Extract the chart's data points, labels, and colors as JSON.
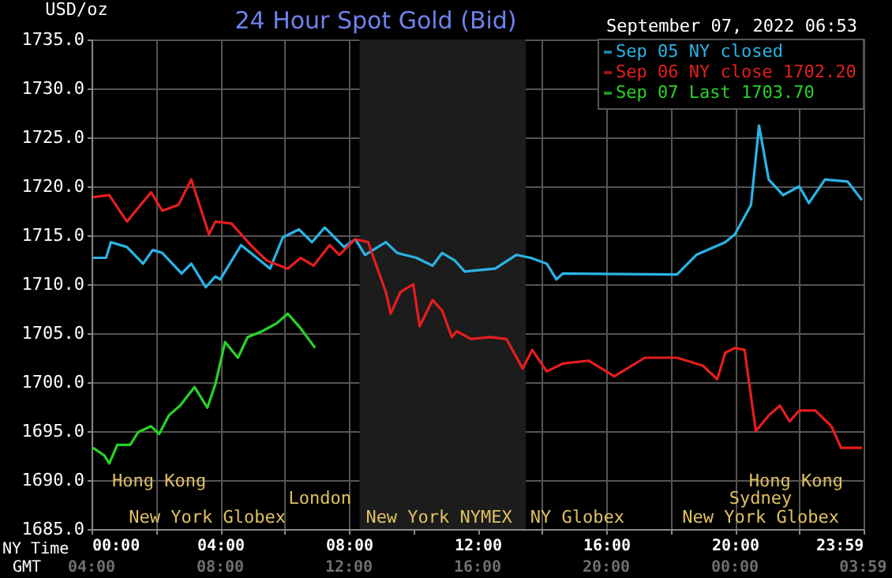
{
  "chart_data": {
    "type": "line",
    "title": "24 Hour Spot Gold (Bid)",
    "subtitle": "September 07, 2022 06:53",
    "xlabel": "NY Time",
    "ylabel": "USD/oz",
    "xlim": [
      0,
      24
    ],
    "xticks": [
      {
        "value": 0,
        "label": "00:00"
      },
      {
        "value": 2,
        "label": null
      },
      {
        "value": 4,
        "label": "04:00"
      },
      {
        "value": 6,
        "label": null
      },
      {
        "value": 8,
        "label": "08:00"
      },
      {
        "value": 10,
        "label": null
      },
      {
        "value": 12,
        "label": "12:00"
      },
      {
        "value": 14,
        "label": null
      },
      {
        "value": 16,
        "label": "16:00"
      },
      {
        "value": 18,
        "label": null
      },
      {
        "value": 20,
        "label": "20:00"
      },
      {
        "value": 22,
        "label": null
      },
      {
        "value": 23.983,
        "label": "23:59"
      }
    ],
    "ylim": [
      1685,
      1735
    ],
    "yticks": [
      {
        "value": 1685,
        "label": "1685.0"
      },
      {
        "value": 1690,
        "label": "1690.0"
      },
      {
        "value": 1695,
        "label": "1695.0"
      },
      {
        "value": 1700,
        "label": "1700.0"
      },
      {
        "value": 1705,
        "label": "1705.0"
      },
      {
        "value": 1710,
        "label": "1710.0"
      },
      {
        "value": 1715,
        "label": "1715.0"
      },
      {
        "value": 1720,
        "label": "1720.0"
      },
      {
        "value": 1725,
        "label": "1725.0"
      },
      {
        "value": 1730,
        "label": "1730.0"
      },
      {
        "value": 1735,
        "label": "1735.0"
      }
    ],
    "grid": true,
    "legend": "top right",
    "marker": "none",
    "line_style": "solid",
    "bands": [
      {
        "axis": "x",
        "from": 8.33,
        "to": 13.5,
        "color": "#1c1c1c"
      }
    ],
    "series": [
      {
        "name": "Sep 05 NY closed",
        "color": "#2ab4e6",
        "x": [
          0.05,
          0.45,
          0.6,
          1.1,
          1.6,
          1.9,
          2.2,
          2.8,
          3.1,
          3.55,
          3.85,
          4.0,
          4.65,
          5.25,
          5.55,
          5.95,
          6.45,
          6.85,
          7.25,
          7.85,
          8.2,
          8.5,
          9.15,
          9.5,
          10.1,
          10.6,
          10.9,
          11.3,
          11.6,
          12.55,
          13.2,
          13.65,
          14.15,
          14.45,
          14.65,
          18.2,
          18.8,
          19.7,
          20.0,
          20.5,
          20.75,
          21.05,
          21.5,
          22.0,
          22.3,
          22.8,
          23.5,
          23.95
        ],
        "values": [
          1712.7,
          1712.7,
          1714.3,
          1713.8,
          1712.1,
          1713.5,
          1713.2,
          1711.1,
          1712.1,
          1709.7,
          1710.8,
          1710.5,
          1714.0,
          1712.4,
          1711.6,
          1714.8,
          1715.6,
          1714.3,
          1715.8,
          1713.8,
          1714.6,
          1713.0,
          1714.3,
          1713.2,
          1712.7,
          1711.9,
          1713.2,
          1712.4,
          1711.3,
          1711.6,
          1713.0,
          1712.7,
          1712.1,
          1710.5,
          1711.1,
          1711.0,
          1713.0,
          1714.3,
          1715.1,
          1718.1,
          1726.2,
          1720.7,
          1719.1,
          1720.0,
          1718.3,
          1720.7,
          1720.5,
          1718.6
        ]
      },
      {
        "name": "Sep 06 NY close 1702.20",
        "color": "#e61e1e",
        "x": [
          0.05,
          0.55,
          1.1,
          1.85,
          2.2,
          2.7,
          3.1,
          3.65,
          3.85,
          4.35,
          4.95,
          5.45,
          6.1,
          6.5,
          6.9,
          7.4,
          7.7,
          8.2,
          8.6,
          8.8,
          9.15,
          9.3,
          9.6,
          10.0,
          10.2,
          10.6,
          10.9,
          11.2,
          11.35,
          11.8,
          12.4,
          12.9,
          13.4,
          13.7,
          14.15,
          14.65,
          15.45,
          16.25,
          17.2,
          18.2,
          19.0,
          19.45,
          19.7,
          20.0,
          20.3,
          20.65,
          21.05,
          21.4,
          21.7,
          22.0,
          22.5,
          23.0,
          23.3,
          23.95
        ],
        "values": [
          1718.9,
          1719.1,
          1716.4,
          1719.4,
          1717.5,
          1718.1,
          1720.7,
          1715.1,
          1716.4,
          1716.2,
          1714.0,
          1712.4,
          1711.6,
          1712.7,
          1711.9,
          1714.0,
          1713.0,
          1714.6,
          1714.3,
          1712.4,
          1709.2,
          1707.0,
          1709.2,
          1710.0,
          1705.7,
          1708.4,
          1707.3,
          1704.6,
          1705.2,
          1704.4,
          1704.6,
          1704.4,
          1701.4,
          1703.3,
          1701.1,
          1701.9,
          1702.2,
          1700.6,
          1702.5,
          1702.5,
          1701.7,
          1700.3,
          1703.0,
          1703.5,
          1703.3,
          1695.0,
          1696.6,
          1697.6,
          1696.0,
          1697.1,
          1697.1,
          1695.5,
          1693.3,
          1693.3
        ]
      },
      {
        "name": "Sep 07 Last 1703.70",
        "color": "#28d228",
        "x": [
          0.05,
          0.4,
          0.55,
          0.8,
          1.2,
          1.45,
          1.85,
          2.1,
          2.4,
          2.75,
          3.2,
          3.6,
          3.85,
          4.15,
          4.55,
          4.85,
          5.3,
          5.75,
          6.1,
          6.45,
          6.95
        ],
        "values": [
          1693.3,
          1692.5,
          1691.7,
          1693.6,
          1693.6,
          1694.9,
          1695.5,
          1694.7,
          1696.6,
          1697.6,
          1699.5,
          1697.4,
          1699.8,
          1704.1,
          1702.5,
          1704.6,
          1705.2,
          1706.0,
          1707.0,
          1705.7,
          1703.5
        ]
      }
    ],
    "annotations": [
      "Hong Kong",
      "London",
      "New York Globex",
      "New York NYMEX",
      "NY Globex",
      "Hong Kong",
      "Sydney",
      "New York Globex",
      "GMT",
      "04:00",
      "08:00",
      "12:00",
      "16:00",
      "20:00",
      "00:00",
      "03:59"
    ]
  }
}
